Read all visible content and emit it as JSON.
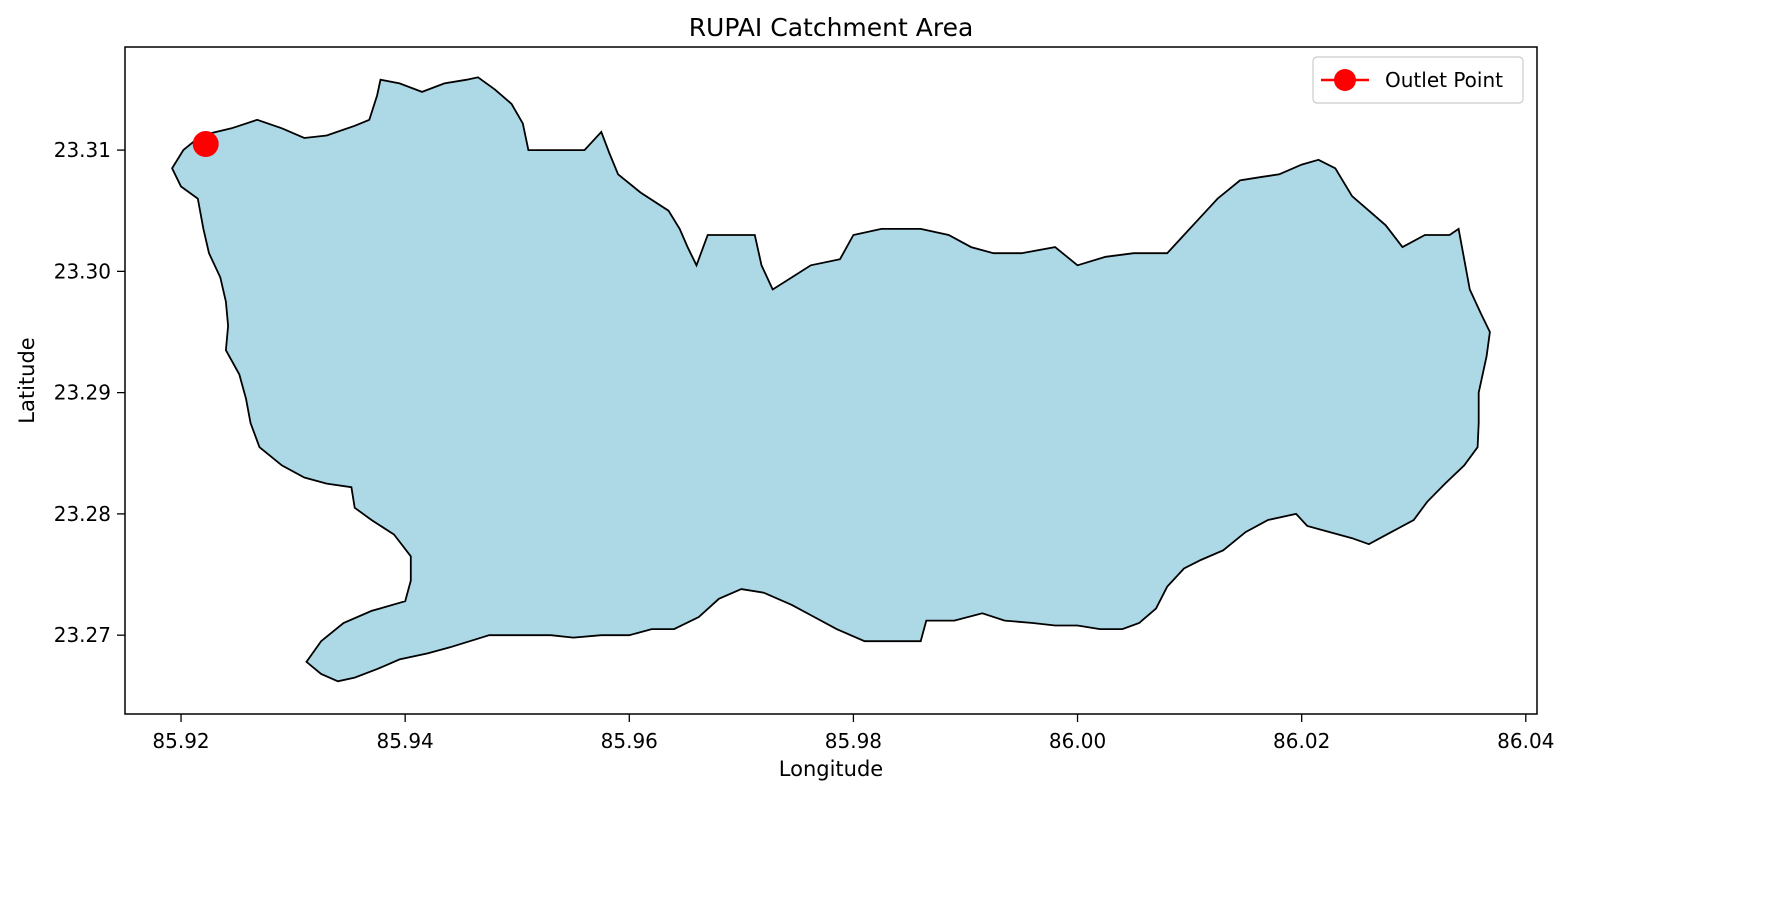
{
  "chart_data": {
    "type": "map",
    "title": "RUPAI Catchment Area",
    "xlabel": "Longitude",
    "ylabel": "Latitude",
    "xlim": [
      85.915,
      86.041
    ],
    "ylim": [
      23.2635,
      23.3185
    ],
    "xticks": [
      85.92,
      85.94,
      85.96,
      85.98,
      86.0,
      86.02,
      86.04
    ],
    "xtick_labels": [
      "85.92",
      "85.94",
      "85.96",
      "85.98",
      "86.00",
      "86.02",
      "86.04"
    ],
    "yticks": [
      23.27,
      23.28,
      23.29,
      23.3,
      23.31
    ],
    "ytick_labels": [
      "23.27",
      "23.28",
      "23.29",
      "23.30",
      "23.31"
    ],
    "grid": false,
    "legend": {
      "position": "top-right",
      "entries": [
        {
          "label": "Outlet Point",
          "color": "#ff0000",
          "marker": "circle"
        }
      ]
    },
    "colors": {
      "catchment_fill": "#add8e6",
      "catchment_edge": "#000000",
      "outlet": "#ff0000"
    },
    "outlet_point": {
      "lon": 85.9222,
      "lat": 23.3105,
      "label": "Outlet Point"
    },
    "catchment_boundary": [
      [
        85.9218,
        23.3112
      ],
      [
        85.9245,
        23.3118
      ],
      [
        85.9268,
        23.3125
      ],
      [
        85.929,
        23.3118
      ],
      [
        85.931,
        23.311
      ],
      [
        85.933,
        23.3112
      ],
      [
        85.9355,
        23.312
      ],
      [
        85.9368,
        23.3125
      ],
      [
        85.9375,
        23.3145
      ],
      [
        85.9378,
        23.3158
      ],
      [
        85.9395,
        23.3155
      ],
      [
        85.9415,
        23.3148
      ],
      [
        85.9435,
        23.3155
      ],
      [
        85.9455,
        23.3158
      ],
      [
        85.9465,
        23.316
      ],
      [
        85.948,
        23.315
      ],
      [
        85.9495,
        23.3138
      ],
      [
        85.9505,
        23.3122
      ],
      [
        85.951,
        23.31
      ],
      [
        85.9535,
        23.31
      ],
      [
        85.956,
        23.31
      ],
      [
        85.9575,
        23.3115
      ],
      [
        85.9582,
        23.3098
      ],
      [
        85.959,
        23.308
      ],
      [
        85.961,
        23.3065
      ],
      [
        85.9635,
        23.305
      ],
      [
        85.9645,
        23.3035
      ],
      [
        85.9652,
        23.302
      ],
      [
        85.966,
        23.3005
      ],
      [
        85.967,
        23.303
      ],
      [
        85.97,
        23.303
      ],
      [
        85.9712,
        23.303
      ],
      [
        85.9718,
        23.3005
      ],
      [
        85.9728,
        23.2985
      ],
      [
        85.9745,
        23.2995
      ],
      [
        85.9762,
        23.3005
      ],
      [
        85.9788,
        23.301
      ],
      [
        85.98,
        23.303
      ],
      [
        85.9825,
        23.3035
      ],
      [
        85.986,
        23.3035
      ],
      [
        85.9885,
        23.303
      ],
      [
        85.9905,
        23.302
      ],
      [
        85.9925,
        23.3015
      ],
      [
        85.995,
        23.3015
      ],
      [
        85.998,
        23.302
      ],
      [
        86.0,
        23.3005
      ],
      [
        86.0025,
        23.3012
      ],
      [
        86.005,
        23.3015
      ],
      [
        86.008,
        23.3015
      ],
      [
        86.0095,
        23.303
      ],
      [
        86.011,
        23.3045
      ],
      [
        86.0125,
        23.306
      ],
      [
        86.0145,
        23.3075
      ],
      [
        86.0165,
        23.3078
      ],
      [
        86.018,
        23.308
      ],
      [
        86.02,
        23.3088
      ],
      [
        86.0215,
        23.3092
      ],
      [
        86.023,
        23.3085
      ],
      [
        86.0245,
        23.3062
      ],
      [
        86.026,
        23.305
      ],
      [
        86.0275,
        23.3038
      ],
      [
        86.029,
        23.302
      ],
      [
        86.031,
        23.303
      ],
      [
        86.0332,
        23.303
      ],
      [
        86.034,
        23.3035
      ],
      [
        86.0345,
        23.301
      ],
      [
        86.035,
        23.2985
      ],
      [
        86.036,
        23.2965
      ],
      [
        86.0368,
        23.295
      ],
      [
        86.0365,
        23.293
      ],
      [
        86.0358,
        23.29
      ],
      [
        86.0358,
        23.2875
      ],
      [
        86.0357,
        23.2855
      ],
      [
        86.0345,
        23.284
      ],
      [
        86.0328,
        23.2825
      ],
      [
        86.0312,
        23.281
      ],
      [
        86.03,
        23.2795
      ],
      [
        86.028,
        23.2785
      ],
      [
        86.026,
        23.2775
      ],
      [
        86.0245,
        23.278
      ],
      [
        86.0225,
        23.2785
      ],
      [
        86.0205,
        23.279
      ],
      [
        86.0195,
        23.28
      ],
      [
        86.017,
        23.2795
      ],
      [
        86.015,
        23.2785
      ],
      [
        86.013,
        23.277
      ],
      [
        86.011,
        23.2762
      ],
      [
        86.0095,
        23.2755
      ],
      [
        86.008,
        23.274
      ],
      [
        86.007,
        23.2722
      ],
      [
        86.0055,
        23.271
      ],
      [
        86.004,
        23.2705
      ],
      [
        86.002,
        23.2705
      ],
      [
        86.0,
        23.2708
      ],
      [
        85.998,
        23.2708
      ],
      [
        85.996,
        23.271
      ],
      [
        85.9935,
        23.2712
      ],
      [
        85.9915,
        23.2718
      ],
      [
        85.989,
        23.2712
      ],
      [
        85.9865,
        23.2712
      ],
      [
        85.986,
        23.2695
      ],
      [
        85.9835,
        23.2695
      ],
      [
        85.981,
        23.2695
      ],
      [
        85.9785,
        23.2705
      ],
      [
        85.9765,
        23.2715
      ],
      [
        85.9745,
        23.2725
      ],
      [
        85.972,
        23.2735
      ],
      [
        85.97,
        23.2738
      ],
      [
        85.968,
        23.273
      ],
      [
        85.9662,
        23.2715
      ],
      [
        85.964,
        23.2705
      ],
      [
        85.962,
        23.2705
      ],
      [
        85.96,
        23.27
      ],
      [
        85.9575,
        23.27
      ],
      [
        85.955,
        23.2698
      ],
      [
        85.953,
        23.27
      ],
      [
        85.95,
        23.27
      ],
      [
        85.9475,
        23.27
      ],
      [
        85.944,
        23.269
      ],
      [
        85.942,
        23.2685
      ],
      [
        85.9395,
        23.268
      ],
      [
        85.9375,
        23.2672
      ],
      [
        85.9355,
        23.2665
      ],
      [
        85.934,
        23.2662
      ],
      [
        85.9325,
        23.2668
      ],
      [
        85.9312,
        23.2678
      ],
      [
        85.9325,
        23.2695
      ],
      [
        85.9345,
        23.271
      ],
      [
        85.937,
        23.272
      ],
      [
        85.94,
        23.2728
      ],
      [
        85.9405,
        23.2745
      ],
      [
        85.9405,
        23.2765
      ],
      [
        85.939,
        23.2783
      ],
      [
        85.937,
        23.2795
      ],
      [
        85.9355,
        23.2805
      ],
      [
        85.9352,
        23.2822
      ],
      [
        85.933,
        23.2825
      ],
      [
        85.931,
        23.283
      ],
      [
        85.929,
        23.284
      ],
      [
        85.927,
        23.2855
      ],
      [
        85.9262,
        23.2875
      ],
      [
        85.9258,
        23.2895
      ],
      [
        85.9252,
        23.2915
      ],
      [
        85.924,
        23.2935
      ],
      [
        85.9242,
        23.2955
      ],
      [
        85.924,
        23.2975
      ],
      [
        85.9235,
        23.2995
      ],
      [
        85.9225,
        23.3015
      ],
      [
        85.922,
        23.3035
      ],
      [
        85.9215,
        23.306
      ],
      [
        85.92,
        23.307
      ],
      [
        85.9192,
        23.3085
      ],
      [
        85.9202,
        23.31
      ],
      [
        85.9218,
        23.3112
      ]
    ]
  }
}
